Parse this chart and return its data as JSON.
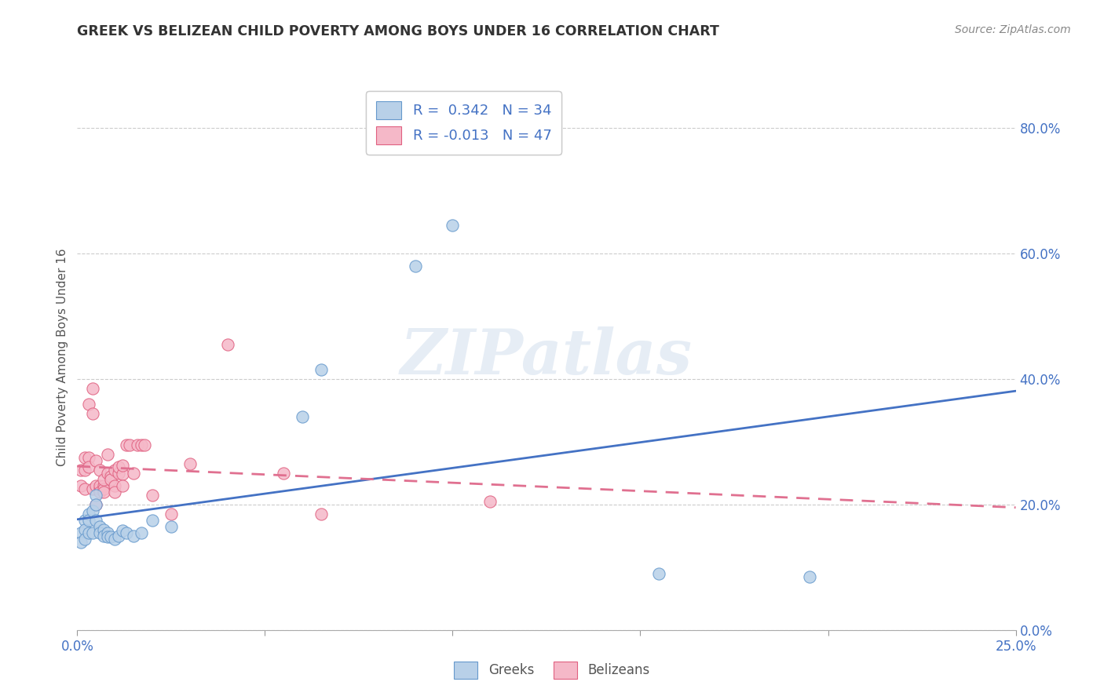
{
  "title": "GREEK VS BELIZEAN CHILD POVERTY AMONG BOYS UNDER 16 CORRELATION CHART",
  "source": "Source: ZipAtlas.com",
  "ylabel": "Child Poverty Among Boys Under 16",
  "xlim": [
    0.0,
    0.25
  ],
  "ylim": [
    0.0,
    0.87
  ],
  "ytick_vals": [
    0.0,
    0.2,
    0.4,
    0.6,
    0.8
  ],
  "ytick_labels": [
    "0.0%",
    "20.0%",
    "40.0%",
    "60.0%",
    "80.0%"
  ],
  "xtick_main": [
    0.0,
    0.25
  ],
  "xtick_main_labels": [
    "0.0%",
    "25.0%"
  ],
  "xtick_minor": [
    0.05,
    0.1,
    0.15,
    0.2
  ],
  "legend_r_greek": "0.342",
  "legend_n_greek": "34",
  "legend_r_belizean": "-0.013",
  "legend_n_belizean": "47",
  "greek_fill": "#b8d0e8",
  "greek_edge": "#6699cc",
  "belizean_fill": "#f5b8c8",
  "belizean_edge": "#e06080",
  "greek_line_color": "#4472c4",
  "belizean_line_color": "#e07090",
  "watermark": "ZIPatlas",
  "background_color": "#ffffff",
  "greeks_x": [
    0.001,
    0.001,
    0.002,
    0.002,
    0.002,
    0.003,
    0.003,
    0.003,
    0.004,
    0.004,
    0.005,
    0.005,
    0.005,
    0.006,
    0.006,
    0.007,
    0.007,
    0.008,
    0.008,
    0.009,
    0.01,
    0.011,
    0.012,
    0.013,
    0.015,
    0.017,
    0.02,
    0.025,
    0.06,
    0.065,
    0.09,
    0.1,
    0.155,
    0.195
  ],
  "greeks_y": [
    0.155,
    0.14,
    0.175,
    0.16,
    0.145,
    0.185,
    0.175,
    0.155,
    0.19,
    0.155,
    0.215,
    0.2,
    0.175,
    0.165,
    0.155,
    0.16,
    0.15,
    0.155,
    0.148,
    0.148,
    0.145,
    0.15,
    0.158,
    0.155,
    0.15,
    0.155,
    0.175,
    0.165,
    0.34,
    0.415,
    0.58,
    0.645,
    0.09,
    0.085
  ],
  "belizeans_x": [
    0.001,
    0.001,
    0.002,
    0.002,
    0.002,
    0.003,
    0.003,
    0.003,
    0.004,
    0.004,
    0.004,
    0.005,
    0.005,
    0.005,
    0.006,
    0.006,
    0.006,
    0.006,
    0.007,
    0.007,
    0.007,
    0.007,
    0.008,
    0.008,
    0.009,
    0.009,
    0.01,
    0.01,
    0.01,
    0.011,
    0.011,
    0.012,
    0.012,
    0.012,
    0.013,
    0.014,
    0.015,
    0.016,
    0.017,
    0.018,
    0.02,
    0.025,
    0.03,
    0.04,
    0.055,
    0.065,
    0.11
  ],
  "belizeans_y": [
    0.23,
    0.255,
    0.255,
    0.275,
    0.225,
    0.36,
    0.275,
    0.26,
    0.385,
    0.345,
    0.225,
    0.27,
    0.23,
    0.2,
    0.255,
    0.225,
    0.23,
    0.22,
    0.23,
    0.225,
    0.24,
    0.22,
    0.28,
    0.25,
    0.245,
    0.24,
    0.255,
    0.23,
    0.22,
    0.25,
    0.26,
    0.248,
    0.262,
    0.23,
    0.295,
    0.295,
    0.25,
    0.295,
    0.295,
    0.295,
    0.215,
    0.185,
    0.265,
    0.455,
    0.25,
    0.185,
    0.205
  ]
}
